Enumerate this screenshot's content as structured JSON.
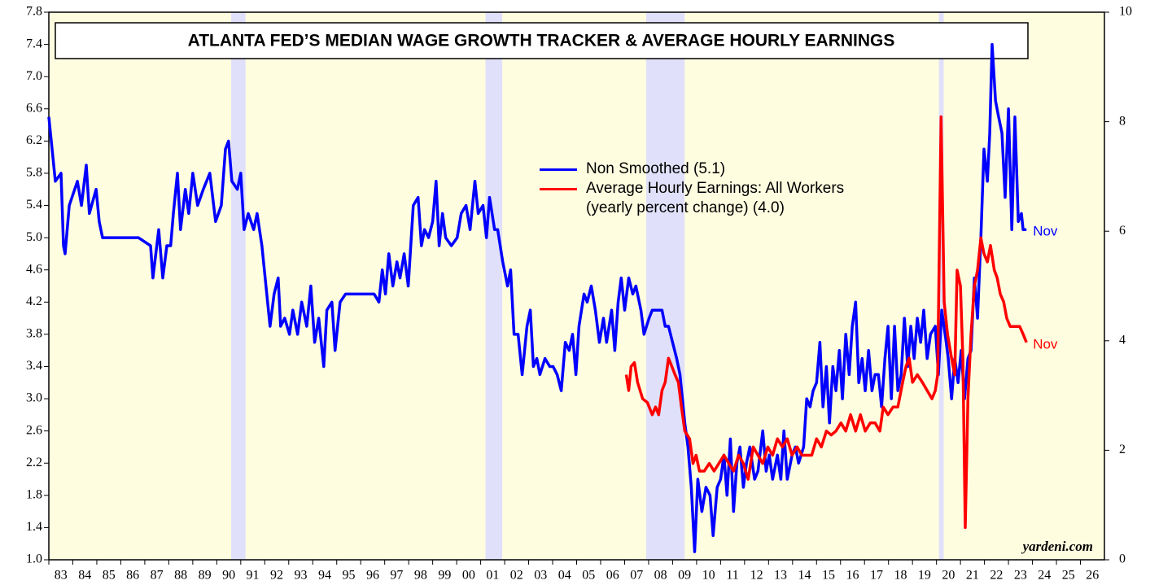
{
  "chart_data": {
    "type": "line",
    "title": "ATLANTA FED’S MEDIAN WAGE GROWTH TRACKER & AVERAGE HOURLY EARNINGS",
    "watermark": "yardeni.com",
    "xlim": [
      1983,
      2027
    ],
    "xticks": [
      {
        "value": 1983,
        "label": "83"
      },
      {
        "value": 1984,
        "label": "84"
      },
      {
        "value": 1985,
        "label": "85"
      },
      {
        "value": 1986,
        "label": "86"
      },
      {
        "value": 1987,
        "label": "87"
      },
      {
        "value": 1988,
        "label": "88"
      },
      {
        "value": 1989,
        "label": "89"
      },
      {
        "value": 1990,
        "label": "90"
      },
      {
        "value": 1991,
        "label": "91"
      },
      {
        "value": 1992,
        "label": "92"
      },
      {
        "value": 1993,
        "label": "93"
      },
      {
        "value": 1994,
        "label": "94"
      },
      {
        "value": 1995,
        "label": "95"
      },
      {
        "value": 1996,
        "label": "96"
      },
      {
        "value": 1997,
        "label": "97"
      },
      {
        "value": 1998,
        "label": "98"
      },
      {
        "value": 1999,
        "label": "99"
      },
      {
        "value": 2000,
        "label": "00"
      },
      {
        "value": 2001,
        "label": "01"
      },
      {
        "value": 2002,
        "label": "02"
      },
      {
        "value": 2003,
        "label": "03"
      },
      {
        "value": 2004,
        "label": "04"
      },
      {
        "value": 2005,
        "label": "05"
      },
      {
        "value": 2006,
        "label": "06"
      },
      {
        "value": 2007,
        "label": "07"
      },
      {
        "value": 2008,
        "label": "08"
      },
      {
        "value": 2009,
        "label": "09"
      },
      {
        "value": 2010,
        "label": "10"
      },
      {
        "value": 2011,
        "label": "11"
      },
      {
        "value": 2012,
        "label": "12"
      },
      {
        "value": 2013,
        "label": "13"
      },
      {
        "value": 2014,
        "label": "14"
      },
      {
        "value": 2015,
        "label": "15"
      },
      {
        "value": 2016,
        "label": "16"
      },
      {
        "value": 2017,
        "label": "17"
      },
      {
        "value": 2018,
        "label": "18"
      },
      {
        "value": 2019,
        "label": "19"
      },
      {
        "value": 2020,
        "label": "20"
      },
      {
        "value": 2021,
        "label": "21"
      },
      {
        "value": 2022,
        "label": "22"
      },
      {
        "value": 2023,
        "label": "23"
      },
      {
        "value": 2024,
        "label": "24"
      },
      {
        "value": 2025,
        "label": "25"
      },
      {
        "value": 2026,
        "label": "26"
      }
    ],
    "ylim": [
      1.0,
      7.8
    ],
    "yticks": [
      {
        "value": 1,
        "label": "1.0"
      },
      1.4,
      1.8,
      2.2,
      2.6,
      {
        "value": 3,
        "label": "3.0"
      },
      3.4,
      3.8,
      4.2,
      4.6,
      {
        "value": 5,
        "label": "5.0"
      },
      5.4,
      5.8,
      6.2,
      6.6,
      {
        "value": 7,
        "label": "7.0"
      },
      7.4,
      7.8
    ],
    "y2lim": [
      0,
      10
    ],
    "y2ticks": [
      0,
      2,
      4,
      6,
      8,
      10
    ],
    "shaded_periods": [
      [
        1990.6,
        1991.2
      ],
      [
        2001.2,
        2001.9
      ],
      [
        2007.9,
        2009.5
      ],
      [
        2020.1,
        2020.3
      ]
    ],
    "shade_color": "#e0e0fa",
    "background": "#fffde0",
    "series": [
      {
        "name": "Non Smoothed (5.1)",
        "color": "#0000ff",
        "end_label": "Nov",
        "x": [
          1983.0,
          1983.27,
          1983.51,
          1983.61,
          1983.68,
          1983.85,
          1984.19,
          1984.36,
          1984.56,
          1984.69,
          1984.97,
          1985.1,
          1985.24,
          1986.73,
          1987.24,
          1987.34,
          1987.58,
          1987.75,
          1987.92,
          1988.08,
          1988.19,
          1988.36,
          1988.49,
          1988.69,
          1988.83,
          1989.0,
          1989.2,
          1989.44,
          1989.71,
          1989.95,
          1990.19,
          1990.36,
          1990.49,
          1990.63,
          1990.86,
          1991.0,
          1991.14,
          1991.31,
          1991.54,
          1991.68,
          1991.88,
          1992.05,
          1992.22,
          1992.39,
          1992.56,
          1992.66,
          1992.83,
          1993.03,
          1993.17,
          1993.37,
          1993.54,
          1993.75,
          1993.92,
          1994.08,
          1994.25,
          1994.46,
          1994.59,
          1994.8,
          1994.93,
          1995.14,
          1995.37,
          1996.56,
          1996.76,
          1996.9,
          1997.03,
          1997.17,
          1997.34,
          1997.51,
          1997.64,
          1997.81,
          1997.98,
          1998.19,
          1998.39,
          1998.53,
          1998.66,
          1998.83,
          1999.0,
          1999.14,
          1999.27,
          1999.41,
          1999.54,
          1999.78,
          2000.02,
          2000.19,
          2000.39,
          2000.56,
          2000.76,
          2000.9,
          2001.1,
          2001.24,
          2001.37,
          2001.58,
          2001.71,
          2001.92,
          2002.12,
          2002.25,
          2002.39,
          2002.56,
          2002.73,
          2002.93,
          2003.07,
          2003.2,
          2003.34,
          2003.47,
          2003.68,
          2003.88,
          2004.02,
          2004.19,
          2004.36,
          2004.53,
          2004.69,
          2004.83,
          2004.97,
          2005.1,
          2005.31,
          2005.44,
          2005.61,
          2005.78,
          2005.95,
          2006.12,
          2006.25,
          2006.46,
          2006.59,
          2006.73,
          2006.86,
          2007.0,
          2007.17,
          2007.34,
          2007.47,
          2007.68,
          2007.81,
          2008.02,
          2008.15,
          2008.36,
          2008.56,
          2008.69,
          2008.83,
          2009.0,
          2009.17,
          2009.31,
          2009.51,
          2009.64,
          2009.78,
          2009.92,
          2010.05,
          2010.22,
          2010.39,
          2010.56,
          2010.69,
          2010.86,
          2011.0,
          2011.14,
          2011.27,
          2011.41,
          2011.54,
          2011.68,
          2011.81,
          2011.95,
          2012.08,
          2012.22,
          2012.42,
          2012.56,
          2012.76,
          2012.9,
          2013.03,
          2013.17,
          2013.37,
          2013.51,
          2013.64,
          2013.78,
          2013.98,
          2014.12,
          2014.25,
          2014.46,
          2014.59,
          2014.73,
          2014.86,
          2015.0,
          2015.14,
          2015.27,
          2015.41,
          2015.54,
          2015.68,
          2015.81,
          2015.95,
          2016.08,
          2016.22,
          2016.36,
          2016.49,
          2016.63,
          2016.76,
          2016.9,
          2017.03,
          2017.17,
          2017.31,
          2017.44,
          2017.58,
          2017.71,
          2017.85,
          2017.98,
          2018.12,
          2018.25,
          2018.39,
          2018.53,
          2018.66,
          2018.8,
          2018.93,
          2019.07,
          2019.2,
          2019.34,
          2019.47,
          2019.61,
          2019.75,
          2019.95,
          2020.08,
          2020.22,
          2020.36,
          2020.49,
          2020.63,
          2020.76,
          2020.9,
          2021.03,
          2021.17,
          2021.31,
          2021.44,
          2021.58,
          2021.71,
          2021.85,
          2021.98,
          2022.12,
          2022.22,
          2022.32,
          2022.46,
          2022.59,
          2022.73,
          2022.86,
          2023.0,
          2023.14,
          2023.27,
          2023.41,
          2023.54,
          2023.61,
          2023.75
        ],
        "values": [
          6.5,
          5.7,
          5.8,
          4.9,
          4.8,
          5.4,
          5.7,
          5.4,
          5.9,
          5.3,
          5.6,
          5.2,
          5.0,
          5.0,
          4.9,
          4.5,
          5.1,
          4.5,
          4.9,
          4.9,
          5.3,
          5.8,
          5.1,
          5.6,
          5.3,
          5.8,
          5.4,
          5.6,
          5.8,
          5.2,
          5.4,
          6.1,
          6.2,
          5.7,
          5.6,
          5.8,
          5.1,
          5.3,
          5.1,
          5.3,
          4.9,
          4.4,
          3.9,
          4.3,
          4.5,
          3.9,
          4.0,
          3.8,
          4.1,
          3.8,
          4.2,
          3.9,
          4.4,
          3.7,
          4.0,
          3.4,
          4.1,
          4.2,
          3.6,
          4.2,
          4.3,
          4.3,
          4.2,
          4.6,
          4.3,
          4.8,
          4.4,
          4.7,
          4.5,
          4.8,
          4.4,
          5.4,
          5.5,
          4.9,
          5.1,
          5.0,
          5.2,
          5.7,
          4.9,
          5.3,
          5.0,
          4.9,
          5.0,
          5.3,
          5.4,
          5.1,
          5.7,
          5.3,
          5.4,
          5.0,
          5.5,
          5.1,
          5.1,
          4.7,
          4.4,
          4.6,
          3.8,
          3.8,
          3.3,
          3.9,
          4.1,
          3.4,
          3.5,
          3.3,
          3.5,
          3.4,
          3.4,
          3.3,
          3.1,
          3.7,
          3.6,
          3.8,
          3.3,
          3.9,
          4.3,
          4.2,
          4.4,
          4.1,
          3.7,
          4.0,
          3.7,
          4.1,
          3.6,
          4.2,
          4.5,
          4.1,
          4.5,
          4.3,
          4.4,
          4.1,
          3.8,
          4.0,
          4.1,
          4.1,
          4.1,
          3.9,
          3.9,
          3.7,
          3.5,
          3.3,
          2.7,
          2.4,
          1.9,
          1.1,
          2.0,
          1.6,
          1.9,
          1.8,
          1.3,
          1.9,
          2.0,
          2.3,
          1.8,
          2.5,
          1.6,
          2.2,
          2.4,
          1.9,
          2.2,
          2.4,
          2.0,
          2.1,
          2.6,
          2.1,
          2.3,
          2.0,
          2.3,
          2.0,
          2.6,
          2.0,
          2.3,
          2.4,
          2.2,
          2.4,
          3.0,
          2.9,
          3.1,
          3.2,
          3.7,
          2.9,
          3.4,
          2.7,
          3.4,
          3.1,
          3.6,
          3.0,
          3.8,
          3.3,
          3.9,
          4.2,
          3.2,
          3.5,
          3.1,
          3.6,
          3.1,
          3.3,
          3.3,
          2.9,
          3.5,
          3.9,
          3.0,
          3.9,
          3.1,
          3.3,
          4.0,
          3.4,
          3.9,
          3.5,
          4.0,
          3.7,
          4.1,
          3.5,
          3.8,
          3.9,
          3.3,
          4.1,
          3.8,
          3.5,
          3.0,
          3.5,
          3.2,
          3.6,
          3.0,
          3.5,
          3.6,
          4.5,
          4.0,
          5.0,
          6.1,
          5.7,
          6.3,
          7.4,
          6.7,
          6.5,
          6.3,
          5.5,
          6.6,
          5.1,
          6.5,
          5.2,
          5.3,
          5.1,
          5.1
        ]
      },
      {
        "name": "Average Hourly Earnings: All Workers (yearly percent change) (4.0)",
        "color": "#ff0000",
        "axis": "y2",
        "end_label": "Nov",
        "x": [
          2007.07,
          2007.17,
          2007.27,
          2007.41,
          2007.54,
          2007.75,
          2007.95,
          2008.15,
          2008.29,
          2008.42,
          2008.56,
          2008.69,
          2008.83,
          2008.97,
          2009.1,
          2009.24,
          2009.37,
          2009.51,
          2009.71,
          2009.85,
          2009.98,
          2010.12,
          2010.32,
          2010.53,
          2010.73,
          2010.93,
          2011.14,
          2011.34,
          2011.54,
          2011.75,
          2011.95,
          2012.15,
          2012.36,
          2012.56,
          2012.76,
          2012.97,
          2013.17,
          2013.37,
          2013.58,
          2013.78,
          2013.98,
          2014.19,
          2014.39,
          2014.59,
          2014.8,
          2015.0,
          2015.2,
          2015.41,
          2015.61,
          2015.81,
          2016.02,
          2016.22,
          2016.42,
          2016.63,
          2016.83,
          2017.03,
          2017.24,
          2017.44,
          2017.64,
          2017.78,
          2017.98,
          2018.19,
          2018.39,
          2018.59,
          2018.73,
          2018.86,
          2019.0,
          2019.2,
          2019.41,
          2019.61,
          2019.81,
          2019.95,
          2020.05,
          2020.19,
          2020.32,
          2020.46,
          2020.63,
          2020.76,
          2020.86,
          2021.0,
          2021.1,
          2021.2,
          2021.31,
          2021.44,
          2021.58,
          2021.71,
          2021.85,
          2021.98,
          2022.12,
          2022.25,
          2022.41,
          2022.53,
          2022.66,
          2022.8,
          2022.93,
          2023.07,
          2023.27,
          2023.47,
          2023.61,
          2023.75
        ],
        "values": [
          3.38,
          3.09,
          3.53,
          3.6,
          3.24,
          2.94,
          2.87,
          2.65,
          2.79,
          2.65,
          3.09,
          3.24,
          3.68,
          3.53,
          3.38,
          3.24,
          2.79,
          2.35,
          2.21,
          1.76,
          1.91,
          1.62,
          1.62,
          1.76,
          1.62,
          1.76,
          1.91,
          1.76,
          1.62,
          1.91,
          1.76,
          1.47,
          2.06,
          1.91,
          1.76,
          2.06,
          1.91,
          2.21,
          2.06,
          2.21,
          1.91,
          2.06,
          1.91,
          1.91,
          1.91,
          2.21,
          2.06,
          2.35,
          2.28,
          2.35,
          2.5,
          2.35,
          2.65,
          2.35,
          2.65,
          2.35,
          2.5,
          2.5,
          2.35,
          2.79,
          2.65,
          2.79,
          2.79,
          3.24,
          3.53,
          3.68,
          3.24,
          3.38,
          3.24,
          3.09,
          2.94,
          3.09,
          3.38,
          8.09,
          4.71,
          4.12,
          3.68,
          3.38,
          5.29,
          5.0,
          3.68,
          0.59,
          2.94,
          4.12,
          5.0,
          5.29,
          5.88,
          5.59,
          5.44,
          5.74,
          5.29,
          5.15,
          4.85,
          4.71,
          4.41,
          4.26,
          4.26,
          4.26,
          4.12,
          3.97
        ]
      }
    ]
  }
}
